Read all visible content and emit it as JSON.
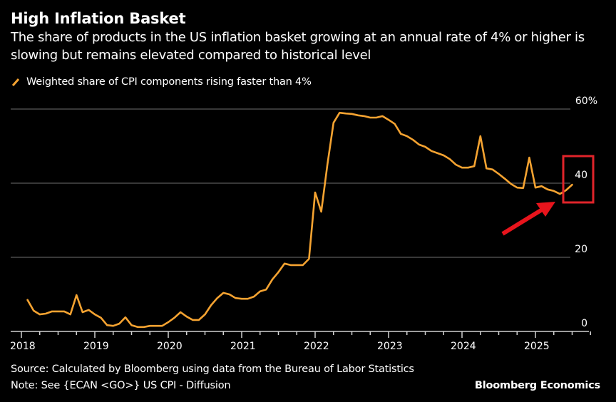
{
  "header": {
    "title": "High Inflation Basket",
    "subtitle": "The share of products in the US inflation basket growing at an annual rate of 4% or higher is slowing but remains elevated compared to historical level"
  },
  "legend": {
    "label": "Weighted share of CPI components rising faster than 4%",
    "color": "#f5a331"
  },
  "footer": {
    "source": "Source: Calculated by Bloomberg using data from the Bureau of Labor Statistics",
    "note": "Note: See {ECAN <GO>} US CPI - Diffusion",
    "brand": "Bloomberg Economics"
  },
  "annotation": {
    "highlight_box_color": "#e0242a",
    "arrow_color": "#e8141c",
    "highlighted_tick": "40"
  },
  "chart_data": {
    "type": "line",
    "title": "High Inflation Basket",
    "xlabel": "",
    "ylabel": "",
    "y_unit": "%",
    "ylim": [
      0,
      60
    ],
    "xlim": [
      "2018-01",
      "2025-09"
    ],
    "y_ticks": [
      {
        "value": 0,
        "label": "0"
      },
      {
        "value": 20,
        "label": "20"
      },
      {
        "value": 40,
        "label": "40"
      },
      {
        "value": 60,
        "label": "60%"
      }
    ],
    "x_ticks": [
      "2018",
      "2019",
      "2020",
      "2021",
      "2022",
      "2023",
      "2024",
      "2025"
    ],
    "grid": "horizontal",
    "legend_position": "top-left",
    "series": [
      {
        "name": "Weighted share of CPI components rising faster than 4%",
        "color": "#f5a331",
        "start": "2018-02",
        "frequency": "monthly",
        "values": [
          8.5,
          5.6,
          4.6,
          4.8,
          5.4,
          5.4,
          5.4,
          4.6,
          9.8,
          5.2,
          5.8,
          4.6,
          3.7,
          1.7,
          1.5,
          2.1,
          3.8,
          1.7,
          1.2,
          1.2,
          1.5,
          1.5,
          1.5,
          2.5,
          3.7,
          5.2,
          4.0,
          3.1,
          3.1,
          4.6,
          7.1,
          9.0,
          10.4,
          10.0,
          9.0,
          8.8,
          8.8,
          9.4,
          10.8,
          11.3,
          14.0,
          16.0,
          18.3,
          17.9,
          17.9,
          17.9,
          19.6,
          37.5,
          32.3,
          45.0,
          56.3,
          59.0,
          58.8,
          58.7,
          58.3,
          58.1,
          57.7,
          57.7,
          58.1,
          57.1,
          56.0,
          53.3,
          52.7,
          51.7,
          50.4,
          49.8,
          48.7,
          48.1,
          47.5,
          46.5,
          45.0,
          44.2,
          44.2,
          44.6,
          52.7,
          44.0,
          43.7,
          42.5,
          41.2,
          39.8,
          38.8,
          38.7,
          46.9,
          38.8,
          39.2,
          38.3,
          37.9,
          37.1,
          38.1,
          39.6
        ]
      }
    ]
  }
}
